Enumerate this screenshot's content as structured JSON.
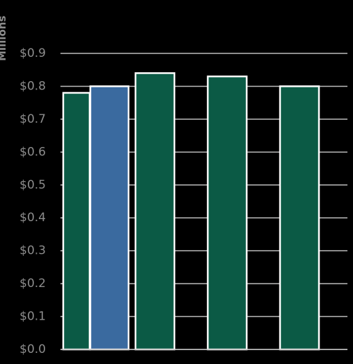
{
  "chart_data": {
    "type": "bar",
    "y_label": "Millions",
    "categories": [
      null,
      null,
      null,
      null,
      null
    ],
    "values": [
      0.78,
      0.8,
      0.84,
      0.83,
      0.8
    ],
    "colors": [
      "#0b5a45",
      "#3a6a9f",
      "#0b5a45",
      "#0b5a45",
      "#0b5a45"
    ],
    "ylim": [
      0,
      0.9
    ],
    "yticks": [
      {
        "value": 0,
        "label": "$0.0"
      },
      {
        "value": 0.1,
        "label": "$0.1"
      },
      {
        "value": 0.2,
        "label": "$0.2"
      },
      {
        "value": 0.3,
        "label": "$0.3"
      },
      {
        "value": 0.4,
        "label": "$0.4"
      },
      {
        "value": 0.5,
        "label": "$0.5"
      },
      {
        "value": 0.6,
        "label": "$0.6"
      },
      {
        "value": 0.7,
        "label": "$0.7"
      },
      {
        "value": 0.8,
        "label": "$0.8"
      },
      {
        "value": 0.9,
        "label": "$0.9"
      }
    ],
    "grid": true
  }
}
